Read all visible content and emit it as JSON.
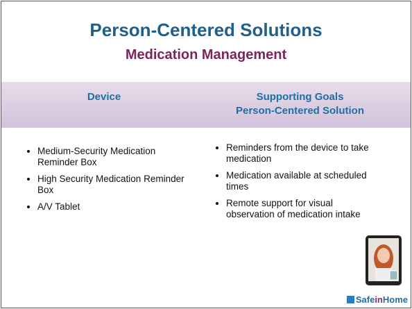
{
  "header": {
    "title": "Person-Centered Solutions",
    "subtitle": "Medication Management"
  },
  "columns": [
    {
      "heading": [
        "Device"
      ],
      "items": [
        "Medium-Security Medication Reminder Box",
        "High Security Medication Reminder Box",
        "A/V Tablet"
      ]
    },
    {
      "heading": [
        "Supporting Goals",
        "Person-Centered Solution"
      ],
      "items": [
        "Reminders from the device to take medication",
        "Medication available at scheduled times",
        "Remote support for visual observation of medication intake"
      ]
    }
  ],
  "logo": {
    "parts": [
      "Safe",
      "in",
      "Home"
    ]
  }
}
